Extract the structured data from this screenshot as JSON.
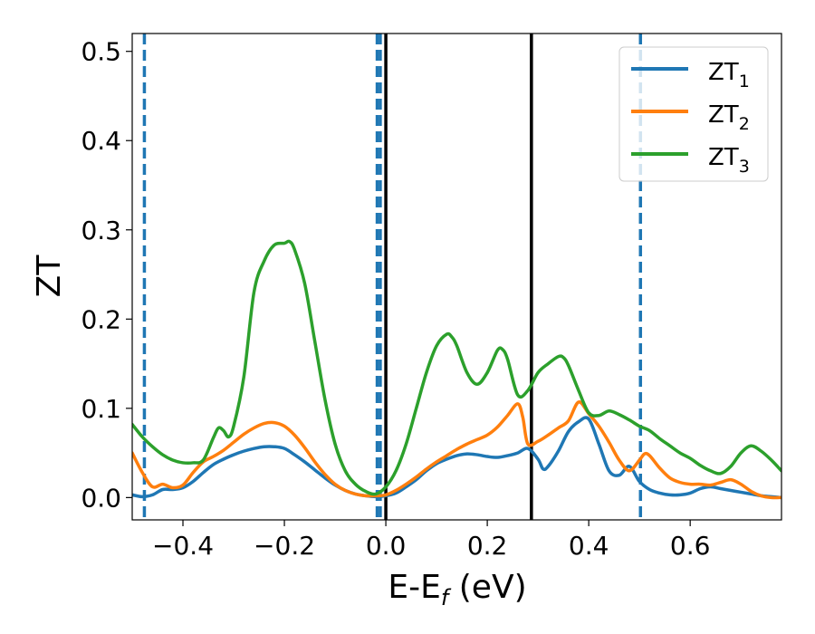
{
  "chart_data": {
    "type": "line",
    "title": "",
    "xlabel": {
      "main": "E-E",
      "sub": "f",
      "tail": " (eV)"
    },
    "ylabel": "ZT",
    "xlim": [
      -0.5,
      0.78
    ],
    "ylim": [
      -0.025,
      0.52
    ],
    "xticks": [
      -0.4,
      -0.2,
      0.0,
      0.2,
      0.4,
      0.6
    ],
    "xtick_labels": [
      "−0.4",
      "−0.2",
      "0.0",
      "0.2",
      "0.4",
      "0.6"
    ],
    "yticks": [
      0.0,
      0.1,
      0.2,
      0.3,
      0.4,
      0.5
    ],
    "ytick_labels": [
      "0.0",
      "0.1",
      "0.2",
      "0.3",
      "0.4",
      "0.5"
    ],
    "legend_position": "top-right",
    "vlines": [
      {
        "x": -0.476,
        "style": "dashed",
        "color": "#1f77b4"
      },
      {
        "x": -0.017,
        "style": "dashed",
        "color": "#1f77b4"
      },
      {
        "x": -0.011,
        "style": "dashed",
        "color": "#1f77b4"
      },
      {
        "x": 0.502,
        "style": "dashed",
        "color": "#1f77b4"
      },
      {
        "x": 0.0,
        "style": "solid",
        "color": "#000000"
      },
      {
        "x": 0.287,
        "style": "solid",
        "color": "#000000"
      }
    ],
    "series": [
      {
        "name": "ZT",
        "sub": "1",
        "color": "#1f77b4",
        "x": [
          -0.5,
          -0.48,
          -0.46,
          -0.44,
          -0.42,
          -0.4,
          -0.38,
          -0.36,
          -0.34,
          -0.32,
          -0.3,
          -0.28,
          -0.26,
          -0.24,
          -0.22,
          -0.2,
          -0.18,
          -0.16,
          -0.14,
          -0.12,
          -0.1,
          -0.08,
          -0.06,
          -0.04,
          -0.02,
          0.0,
          0.02,
          0.04,
          0.06,
          0.08,
          0.1,
          0.12,
          0.14,
          0.16,
          0.18,
          0.2,
          0.22,
          0.24,
          0.26,
          0.28,
          0.3,
          0.31,
          0.32,
          0.34,
          0.36,
          0.38,
          0.4,
          0.42,
          0.44,
          0.46,
          0.48,
          0.5,
          0.52,
          0.54,
          0.56,
          0.58,
          0.6,
          0.62,
          0.64,
          0.66,
          0.68,
          0.7,
          0.72,
          0.74,
          0.76,
          0.78
        ],
        "values": [
          0.003,
          0.001,
          0.003,
          0.009,
          0.009,
          0.011,
          0.018,
          0.028,
          0.037,
          0.043,
          0.048,
          0.052,
          0.055,
          0.057,
          0.057,
          0.055,
          0.048,
          0.04,
          0.031,
          0.022,
          0.014,
          0.008,
          0.004,
          0.002,
          0.001,
          0.002,
          0.005,
          0.012,
          0.02,
          0.03,
          0.038,
          0.043,
          0.047,
          0.049,
          0.048,
          0.046,
          0.045,
          0.047,
          0.05,
          0.055,
          0.043,
          0.032,
          0.035,
          0.052,
          0.074,
          0.085,
          0.088,
          0.06,
          0.03,
          0.025,
          0.035,
          0.018,
          0.009,
          0.005,
          0.003,
          0.003,
          0.005,
          0.01,
          0.012,
          0.01,
          0.008,
          0.006,
          0.004,
          0.002,
          0.001,
          0.0
        ]
      },
      {
        "name": "ZT",
        "sub": "2",
        "color": "#ff7f0e",
        "x": [
          -0.5,
          -0.48,
          -0.46,
          -0.44,
          -0.42,
          -0.4,
          -0.38,
          -0.36,
          -0.34,
          -0.32,
          -0.3,
          -0.28,
          -0.26,
          -0.24,
          -0.22,
          -0.2,
          -0.18,
          -0.16,
          -0.14,
          -0.12,
          -0.1,
          -0.08,
          -0.06,
          -0.04,
          -0.02,
          0.0,
          0.02,
          0.04,
          0.06,
          0.08,
          0.1,
          0.12,
          0.14,
          0.16,
          0.18,
          0.2,
          0.22,
          0.24,
          0.26,
          0.27,
          0.28,
          0.3,
          0.32,
          0.34,
          0.36,
          0.38,
          0.4,
          0.42,
          0.44,
          0.46,
          0.48,
          0.5,
          0.51,
          0.52,
          0.54,
          0.56,
          0.58,
          0.6,
          0.62,
          0.64,
          0.66,
          0.68,
          0.7,
          0.72,
          0.74,
          0.76,
          0.78
        ],
        "values": [
          0.05,
          0.028,
          0.012,
          0.015,
          0.011,
          0.014,
          0.028,
          0.04,
          0.046,
          0.053,
          0.062,
          0.071,
          0.078,
          0.083,
          0.084,
          0.08,
          0.07,
          0.056,
          0.04,
          0.026,
          0.015,
          0.008,
          0.004,
          0.002,
          0.002,
          0.003,
          0.008,
          0.015,
          0.023,
          0.032,
          0.04,
          0.047,
          0.054,
          0.06,
          0.065,
          0.07,
          0.079,
          0.092,
          0.105,
          0.09,
          0.06,
          0.063,
          0.07,
          0.078,
          0.086,
          0.107,
          0.094,
          0.08,
          0.062,
          0.042,
          0.03,
          0.042,
          0.049,
          0.047,
          0.033,
          0.022,
          0.017,
          0.015,
          0.015,
          0.014,
          0.017,
          0.02,
          0.015,
          0.007,
          0.002,
          0.0,
          0.0
        ]
      },
      {
        "name": "ZT",
        "sub": "3",
        "color": "#2ca02c",
        "x": [
          -0.5,
          -0.48,
          -0.46,
          -0.44,
          -0.42,
          -0.4,
          -0.38,
          -0.36,
          -0.34,
          -0.33,
          -0.32,
          -0.31,
          -0.3,
          -0.28,
          -0.26,
          -0.24,
          -0.22,
          -0.2,
          -0.19,
          -0.18,
          -0.16,
          -0.14,
          -0.12,
          -0.1,
          -0.08,
          -0.06,
          -0.04,
          -0.02,
          0.0,
          0.02,
          0.04,
          0.06,
          0.08,
          0.1,
          0.12,
          0.13,
          0.14,
          0.16,
          0.18,
          0.2,
          0.22,
          0.23,
          0.24,
          0.26,
          0.28,
          0.3,
          0.32,
          0.34,
          0.35,
          0.36,
          0.38,
          0.4,
          0.42,
          0.44,
          0.46,
          0.48,
          0.5,
          0.52,
          0.54,
          0.56,
          0.58,
          0.6,
          0.62,
          0.64,
          0.66,
          0.68,
          0.7,
          0.72,
          0.74,
          0.76,
          0.78
        ],
        "values": [
          0.082,
          0.068,
          0.057,
          0.048,
          0.042,
          0.039,
          0.039,
          0.042,
          0.067,
          0.078,
          0.075,
          0.068,
          0.08,
          0.135,
          0.23,
          0.265,
          0.283,
          0.285,
          0.287,
          0.278,
          0.24,
          0.175,
          0.11,
          0.06,
          0.03,
          0.015,
          0.007,
          0.004,
          0.012,
          0.03,
          0.06,
          0.1,
          0.14,
          0.17,
          0.183,
          0.18,
          0.17,
          0.14,
          0.127,
          0.14,
          0.165,
          0.166,
          0.155,
          0.115,
          0.12,
          0.14,
          0.15,
          0.158,
          0.157,
          0.148,
          0.12,
          0.095,
          0.092,
          0.097,
          0.093,
          0.087,
          0.08,
          0.075,
          0.066,
          0.058,
          0.05,
          0.044,
          0.036,
          0.03,
          0.027,
          0.035,
          0.05,
          0.058,
          0.052,
          0.042,
          0.03
        ]
      }
    ]
  }
}
